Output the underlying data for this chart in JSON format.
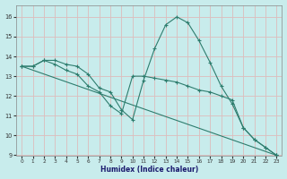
{
  "xlabel": "Humidex (Indice chaleur)",
  "background_color": "#c8ecec",
  "grid_color": "#aacccc",
  "line_color": "#2e7d6e",
  "xlim": [
    -0.5,
    23.5
  ],
  "ylim": [
    9,
    16.6
  ],
  "yticks": [
    9,
    10,
    11,
    12,
    13,
    14,
    15,
    16
  ],
  "xticks": [
    0,
    1,
    2,
    3,
    4,
    5,
    6,
    7,
    8,
    9,
    10,
    11,
    12,
    13,
    14,
    15,
    16,
    17,
    18,
    19,
    20,
    21,
    22,
    23
  ],
  "series": [
    {
      "x": [
        0,
        1,
        2,
        3,
        4,
        5,
        6,
        7,
        8,
        9,
        10,
        11,
        12,
        13,
        14,
        15,
        16,
        17,
        18,
        19,
        20,
        21,
        22,
        23
      ],
      "y": [
        13.5,
        13.5,
        13.8,
        13.8,
        13.6,
        13.5,
        13.1,
        12.4,
        12.2,
        11.3,
        10.8,
        12.8,
        14.4,
        15.6,
        16.0,
        15.7,
        14.8,
        13.7,
        12.5,
        11.6,
        10.4,
        9.8,
        9.4,
        9.0
      ]
    },
    {
      "x": [
        0,
        23
      ],
      "y": [
        13.5,
        9.0
      ]
    },
    {
      "x": [
        0,
        1,
        2,
        3,
        4,
        5,
        6,
        7,
        8,
        9,
        10,
        11,
        12,
        13,
        14,
        15,
        16,
        17,
        18,
        19,
        20,
        21,
        22,
        23
      ],
      "y": [
        13.5,
        13.5,
        13.8,
        13.6,
        13.3,
        13.1,
        12.5,
        12.2,
        11.5,
        11.1,
        13.0,
        13.0,
        12.9,
        12.8,
        12.7,
        12.5,
        12.3,
        12.2,
        12.0,
        11.8,
        10.4,
        9.8,
        9.4,
        9.0
      ]
    }
  ]
}
